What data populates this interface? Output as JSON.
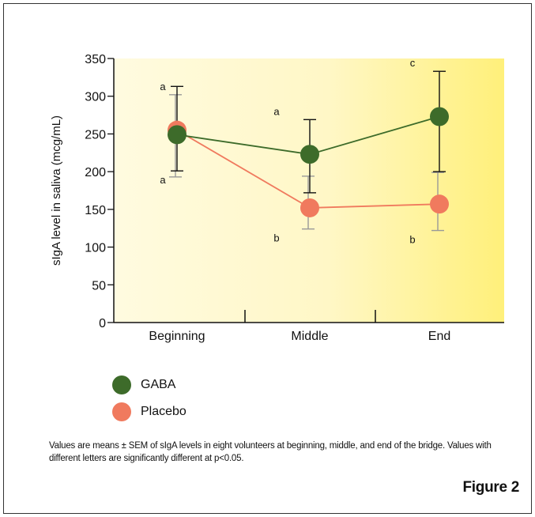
{
  "chart_data": {
    "type": "line",
    "ylabel": "sIgA level in saliva (mcg/mL)",
    "ylim": [
      0,
      350
    ],
    "yticks": [
      0,
      50,
      100,
      150,
      200,
      250,
      300,
      350
    ],
    "categories": [
      "Beginning",
      "Middle",
      "End"
    ],
    "series": [
      {
        "name": "GABA",
        "color": "#3d6b2a",
        "values": [
          249,
          223,
          273
        ],
        "err_low": [
          201,
          172,
          200
        ],
        "err_high": [
          313,
          269,
          333
        ],
        "letters": [
          "a",
          "a",
          "c"
        ]
      },
      {
        "name": "Placebo",
        "color": "#f07a5e",
        "values": [
          255,
          152,
          157
        ],
        "err_low": [
          193,
          124,
          122
        ],
        "err_high": [
          302,
          194,
          199
        ],
        "letters": [
          "a",
          "b",
          "b"
        ]
      }
    ]
  },
  "caption": "Values are means ± SEM of sIgA levels in eight volunteers at beginning, middle, and end of the bridge. Values with different letters are significantly different at p<0.05.",
  "figure_label": "Figure 2"
}
